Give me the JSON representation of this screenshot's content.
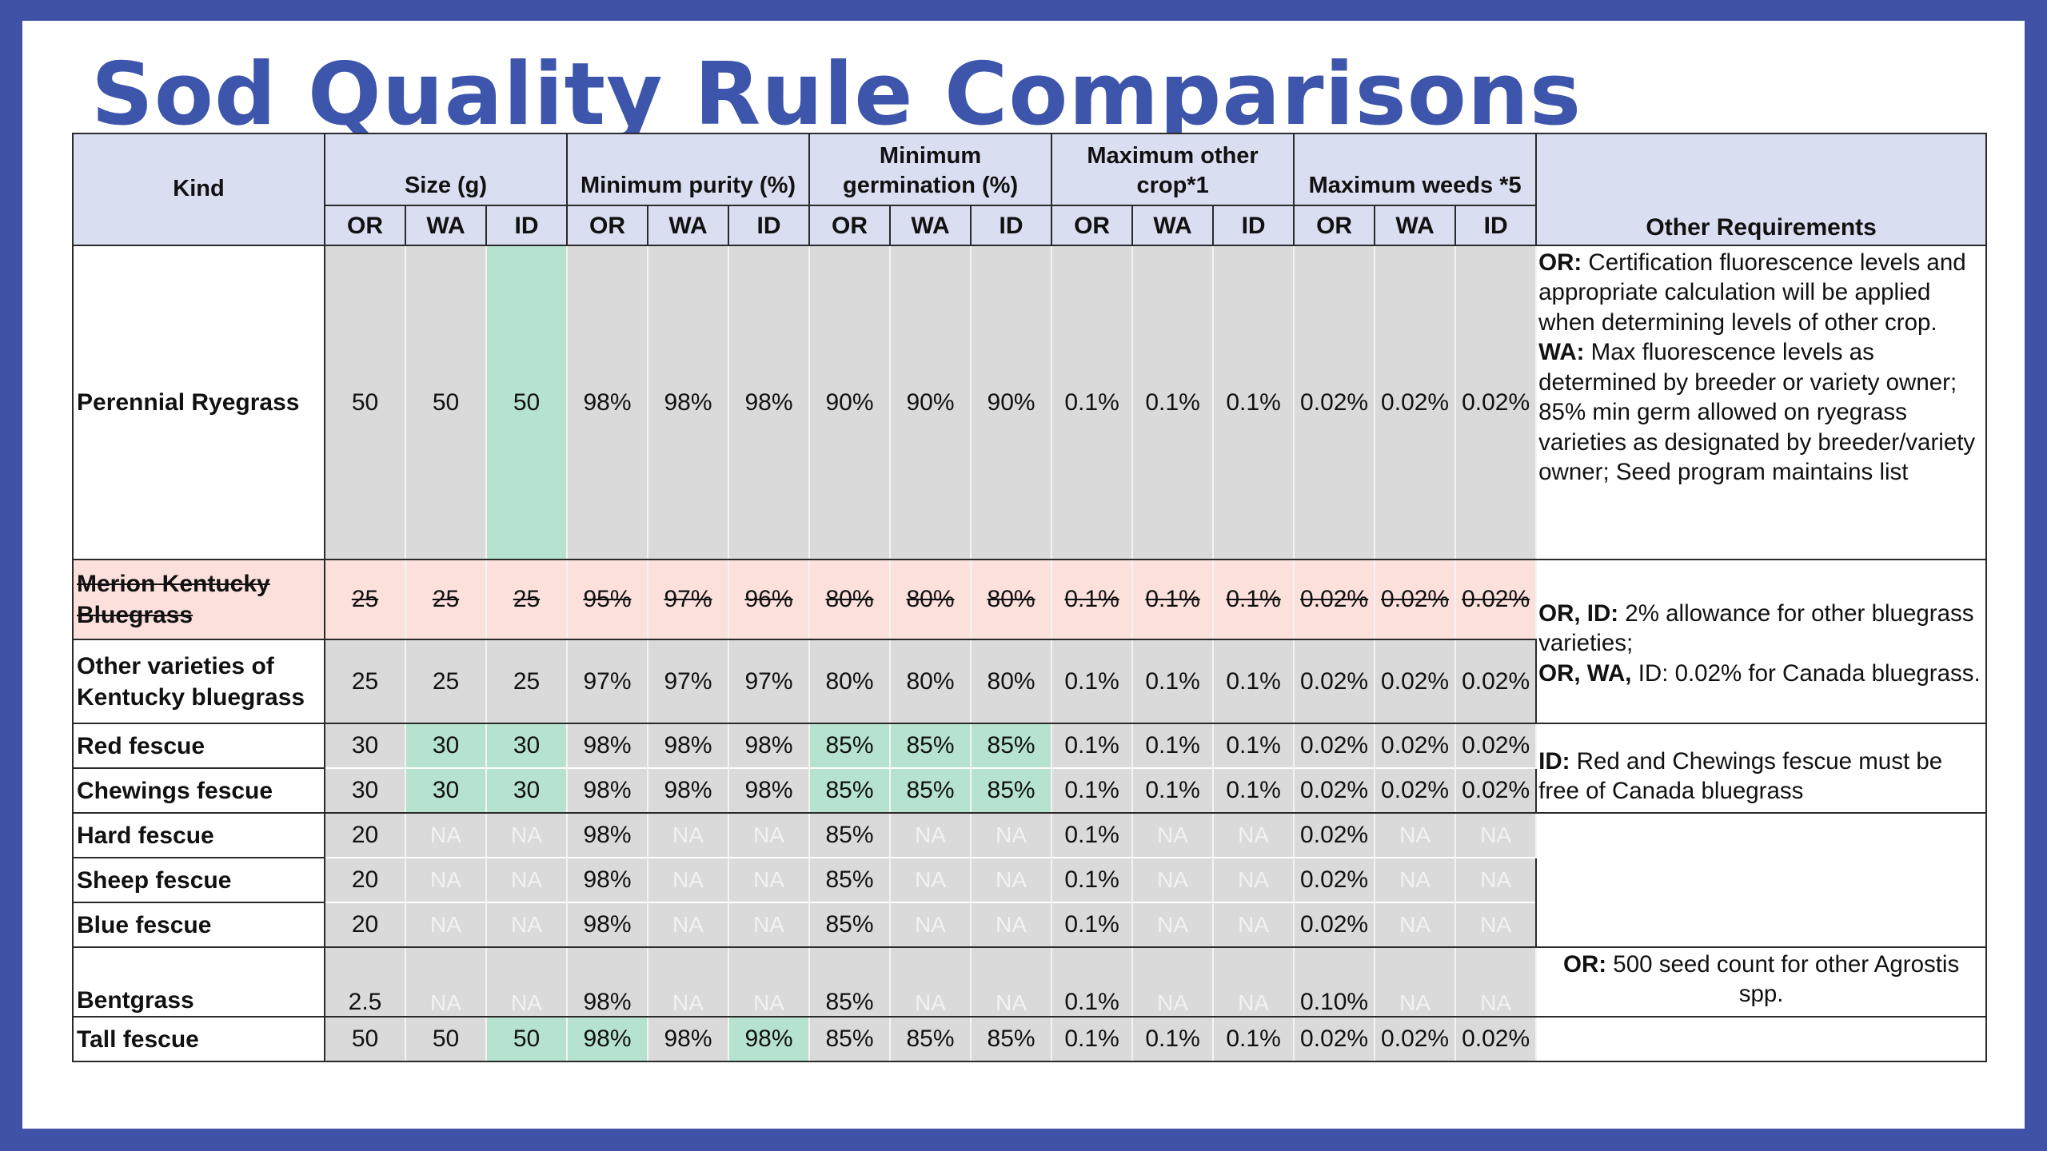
{
  "title": "Sod Quality Rule Comparisons",
  "headers": {
    "kind": "Kind",
    "groups": [
      "Size (g)",
      "Minimum purity (%)",
      "Minimum germination (%)",
      "Maximum other crop*1",
      "Maximum weeds *5"
    ],
    "other": "Other Requirements",
    "states": [
      "OR",
      "WA",
      "ID"
    ]
  },
  "rows": [
    {
      "kind": "Perennial Ryegrass",
      "values": [
        "50",
        "50",
        "50",
        "98%",
        "98%",
        "98%",
        "90%",
        "90%",
        "90%",
        "0.1%",
        "0.1%",
        "0.1%",
        "0.02%",
        "0.02%",
        "0.02%"
      ]
    },
    {
      "kind": "Merion Kentucky Bluegrass",
      "struck": true,
      "values": [
        "25",
        "25",
        "25",
        "95%",
        "97%",
        "96%",
        "80%",
        "80%",
        "80%",
        "0.1%",
        "0.1%",
        "0.1%",
        "0.02%",
        "0.02%",
        "0.02%"
      ]
    },
    {
      "kind": "Other varieties of Kentucky bluegrass",
      "values": [
        "25",
        "25",
        "25",
        "97%",
        "97%",
        "97%",
        "80%",
        "80%",
        "80%",
        "0.1%",
        "0.1%",
        "0.1%",
        "0.02%",
        "0.02%",
        "0.02%"
      ]
    },
    {
      "kind": "Red fescue",
      "values": [
        "30",
        "30",
        "30",
        "98%",
        "98%",
        "98%",
        "85%",
        "85%",
        "85%",
        "0.1%",
        "0.1%",
        "0.1%",
        "0.02%",
        "0.02%",
        "0.02%"
      ]
    },
    {
      "kind": "Chewings fescue",
      "values": [
        "30",
        "30",
        "30",
        "98%",
        "98%",
        "98%",
        "85%",
        "85%",
        "85%",
        "0.1%",
        "0.1%",
        "0.1%",
        "0.02%",
        "0.02%",
        "0.02%"
      ]
    },
    {
      "kind": "Hard fescue",
      "values": [
        "20",
        "NA",
        "NA",
        "98%",
        "NA",
        "NA",
        "85%",
        "NA",
        "NA",
        "0.1%",
        "NA",
        "NA",
        "0.02%",
        "NA",
        "NA"
      ]
    },
    {
      "kind": "Sheep fescue",
      "values": [
        "20",
        "NA",
        "NA",
        "98%",
        "NA",
        "NA",
        "85%",
        "NA",
        "NA",
        "0.1%",
        "NA",
        "NA",
        "0.02%",
        "NA",
        "NA"
      ]
    },
    {
      "kind": "Blue fescue",
      "values": [
        "20",
        "NA",
        "NA",
        "98%",
        "NA",
        "NA",
        "85%",
        "NA",
        "NA",
        "0.1%",
        "NA",
        "NA",
        "0.02%",
        "NA",
        "NA"
      ]
    },
    {
      "kind": "Bentgrass",
      "values": [
        "2.5",
        "NA",
        "NA",
        "98%",
        "NA",
        "NA",
        "85%",
        "NA",
        "NA",
        "0.1%",
        "NA",
        "NA",
        "0.10%",
        "NA",
        "NA"
      ]
    },
    {
      "kind": "Tall fescue",
      "values": [
        "50",
        "50",
        "50",
        "98%",
        "98%",
        "98%",
        "85%",
        "85%",
        "85%",
        "0.1%",
        "0.1%",
        "0.1%",
        "0.02%",
        "0.02%",
        "0.02%"
      ]
    }
  ],
  "requirements": {
    "ryegrass": [
      {
        "label": "OR:",
        "text": "Certification fluorescence levels and appropriate calculation will be applied when determining levels of other crop."
      },
      {
        "label": "WA:",
        "text": "Max fluorescence levels as determined by breeder or variety owner; 85% min germ allowed on ryegrass varieties as designated by breeder/variety owner; Seed program maintains list"
      }
    ],
    "bluegrass": [
      {
        "label": "OR, ID:",
        "text": "2% allowance for other bluegrass varieties;"
      },
      {
        "label": "OR, WA,",
        "text": "ID: 0.02% for Canada bluegrass."
      }
    ],
    "fescue": [
      {
        "label": "ID:",
        "text": "Red and Chewings fescue must be free of Canada bluegrass"
      }
    ],
    "bentgrass": [
      {
        "label": "OR:",
        "text": "500 seed count for other Agrostis spp."
      }
    ]
  },
  "colors": {
    "frame": "#3f52a7",
    "title": "#3d55ab",
    "header_bg": "#d9def1",
    "cell_bg": "#dadada",
    "highlight_green": "#b6e3cf",
    "struck_pink": "#fbe0dc"
  }
}
